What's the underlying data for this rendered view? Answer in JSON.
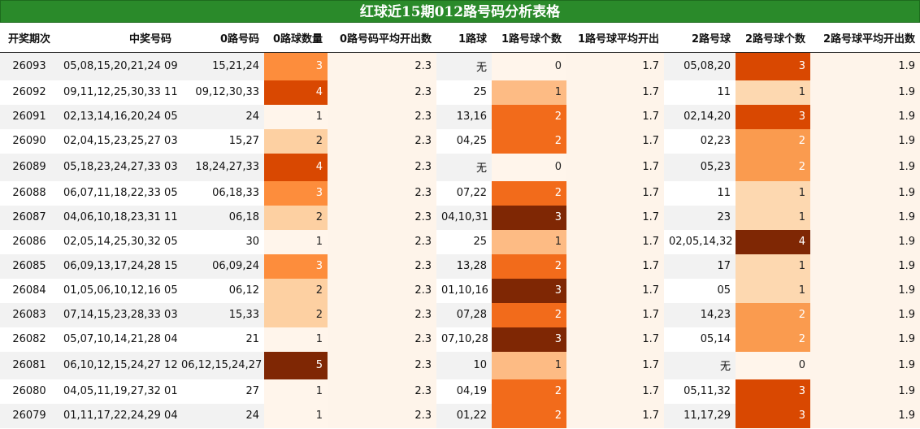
{
  "title": "红球近15期012路号码分析表格",
  "headers": [
    "开奖期次",
    "中奖号码",
    "0路号码",
    "0路球数量",
    "0路号码平均开出数",
    "1路球",
    "1路号球个数",
    "1路号球平均开出",
    "2路号球",
    "2路号球个数",
    "2路号球平均开出数"
  ],
  "rows": [
    {
      "period": "26093",
      "numbers": "05,08,15,20,21,24 09",
      "r0": "15,21,24",
      "r0n": "3",
      "r0avg": "2.3",
      "r1": "无",
      "r1n": "0",
      "r1avg": "1.7",
      "r2": "05,08,20",
      "r2n": "3",
      "r2avg": "1.9"
    },
    {
      "period": "26092",
      "numbers": "09,11,12,25,30,33 11",
      "r0": "09,12,30,33",
      "r0n": "4",
      "r0avg": "2.3",
      "r1": "25",
      "r1n": "1",
      "r1avg": "1.7",
      "r2": "11",
      "r2n": "1",
      "r2avg": "1.9"
    },
    {
      "period": "26091",
      "numbers": "02,13,14,16,20,24 05",
      "r0": "24",
      "r0n": "1",
      "r0avg": "2.3",
      "r1": "13,16",
      "r1n": "2",
      "r1avg": "1.7",
      "r2": "02,14,20",
      "r2n": "3",
      "r2avg": "1.9"
    },
    {
      "period": "26090",
      "numbers": "02,04,15,23,25,27 03",
      "r0": "15,27",
      "r0n": "2",
      "r0avg": "2.3",
      "r1": "04,25",
      "r1n": "2",
      "r1avg": "1.7",
      "r2": "02,23",
      "r2n": "2",
      "r2avg": "1.9"
    },
    {
      "period": "26089",
      "numbers": "05,18,23,24,27,33 03",
      "r0": "18,24,27,33",
      "r0n": "4",
      "r0avg": "2.3",
      "r1": "无",
      "r1n": "0",
      "r1avg": "1.7",
      "r2": "05,23",
      "r2n": "2",
      "r2avg": "1.9"
    },
    {
      "period": "26088",
      "numbers": "06,07,11,18,22,33 05",
      "r0": "06,18,33",
      "r0n": "3",
      "r0avg": "2.3",
      "r1": "07,22",
      "r1n": "2",
      "r1avg": "1.7",
      "r2": "11",
      "r2n": "1",
      "r2avg": "1.9"
    },
    {
      "period": "26087",
      "numbers": "04,06,10,18,23,31 11",
      "r0": "06,18",
      "r0n": "2",
      "r0avg": "2.3",
      "r1": "04,10,31",
      "r1n": "3",
      "r1avg": "1.7",
      "r2": "23",
      "r2n": "1",
      "r2avg": "1.9"
    },
    {
      "period": "26086",
      "numbers": "02,05,14,25,30,32 05",
      "r0": "30",
      "r0n": "1",
      "r0avg": "2.3",
      "r1": "25",
      "r1n": "1",
      "r1avg": "1.7",
      "r2": "02,05,14,32",
      "r2n": "4",
      "r2avg": "1.9"
    },
    {
      "period": "26085",
      "numbers": "06,09,13,17,24,28 15",
      "r0": "06,09,24",
      "r0n": "3",
      "r0avg": "2.3",
      "r1": "13,28",
      "r1n": "2",
      "r1avg": "1.7",
      "r2": "17",
      "r2n": "1",
      "r2avg": "1.9"
    },
    {
      "period": "26084",
      "numbers": "01,05,06,10,12,16 05",
      "r0": "06,12",
      "r0n": "2",
      "r0avg": "2.3",
      "r1": "01,10,16",
      "r1n": "3",
      "r1avg": "1.7",
      "r2": "05",
      "r2n": "1",
      "r2avg": "1.9"
    },
    {
      "period": "26083",
      "numbers": "07,14,15,23,28,33 03",
      "r0": "15,33",
      "r0n": "2",
      "r0avg": "2.3",
      "r1": "07,28",
      "r1n": "2",
      "r1avg": "1.7",
      "r2": "14,23",
      "r2n": "2",
      "r2avg": "1.9"
    },
    {
      "period": "26082",
      "numbers": "05,07,10,14,21,28 04",
      "r0": "21",
      "r0n": "1",
      "r0avg": "2.3",
      "r1": "07,10,28",
      "r1n": "3",
      "r1avg": "1.7",
      "r2": "05,14",
      "r2n": "2",
      "r2avg": "1.9"
    },
    {
      "period": "26081",
      "numbers": "06,10,12,15,24,27 12",
      "r0": "06,12,15,24,27",
      "r0n": "5",
      "r0avg": "2.3",
      "r1": "10",
      "r1n": "1",
      "r1avg": "1.7",
      "r2": "无",
      "r2n": "0",
      "r2avg": "1.9"
    },
    {
      "period": "26080",
      "numbers": "04,05,11,19,27,32 01",
      "r0": "27",
      "r0n": "1",
      "r0avg": "2.3",
      "r1": "04,19",
      "r1n": "2",
      "r1avg": "1.7",
      "r2": "05,11,32",
      "r2n": "3",
      "r2avg": "1.9"
    },
    {
      "period": "26079",
      "numbers": "01,11,17,22,24,29 04",
      "r0": "24",
      "r0n": "1",
      "r0avg": "2.3",
      "r1": "01,22",
      "r1n": "2",
      "r1avg": "1.7",
      "r2": "11,17,29",
      "r2n": "3",
      "r2avg": "1.9"
    }
  ]
}
